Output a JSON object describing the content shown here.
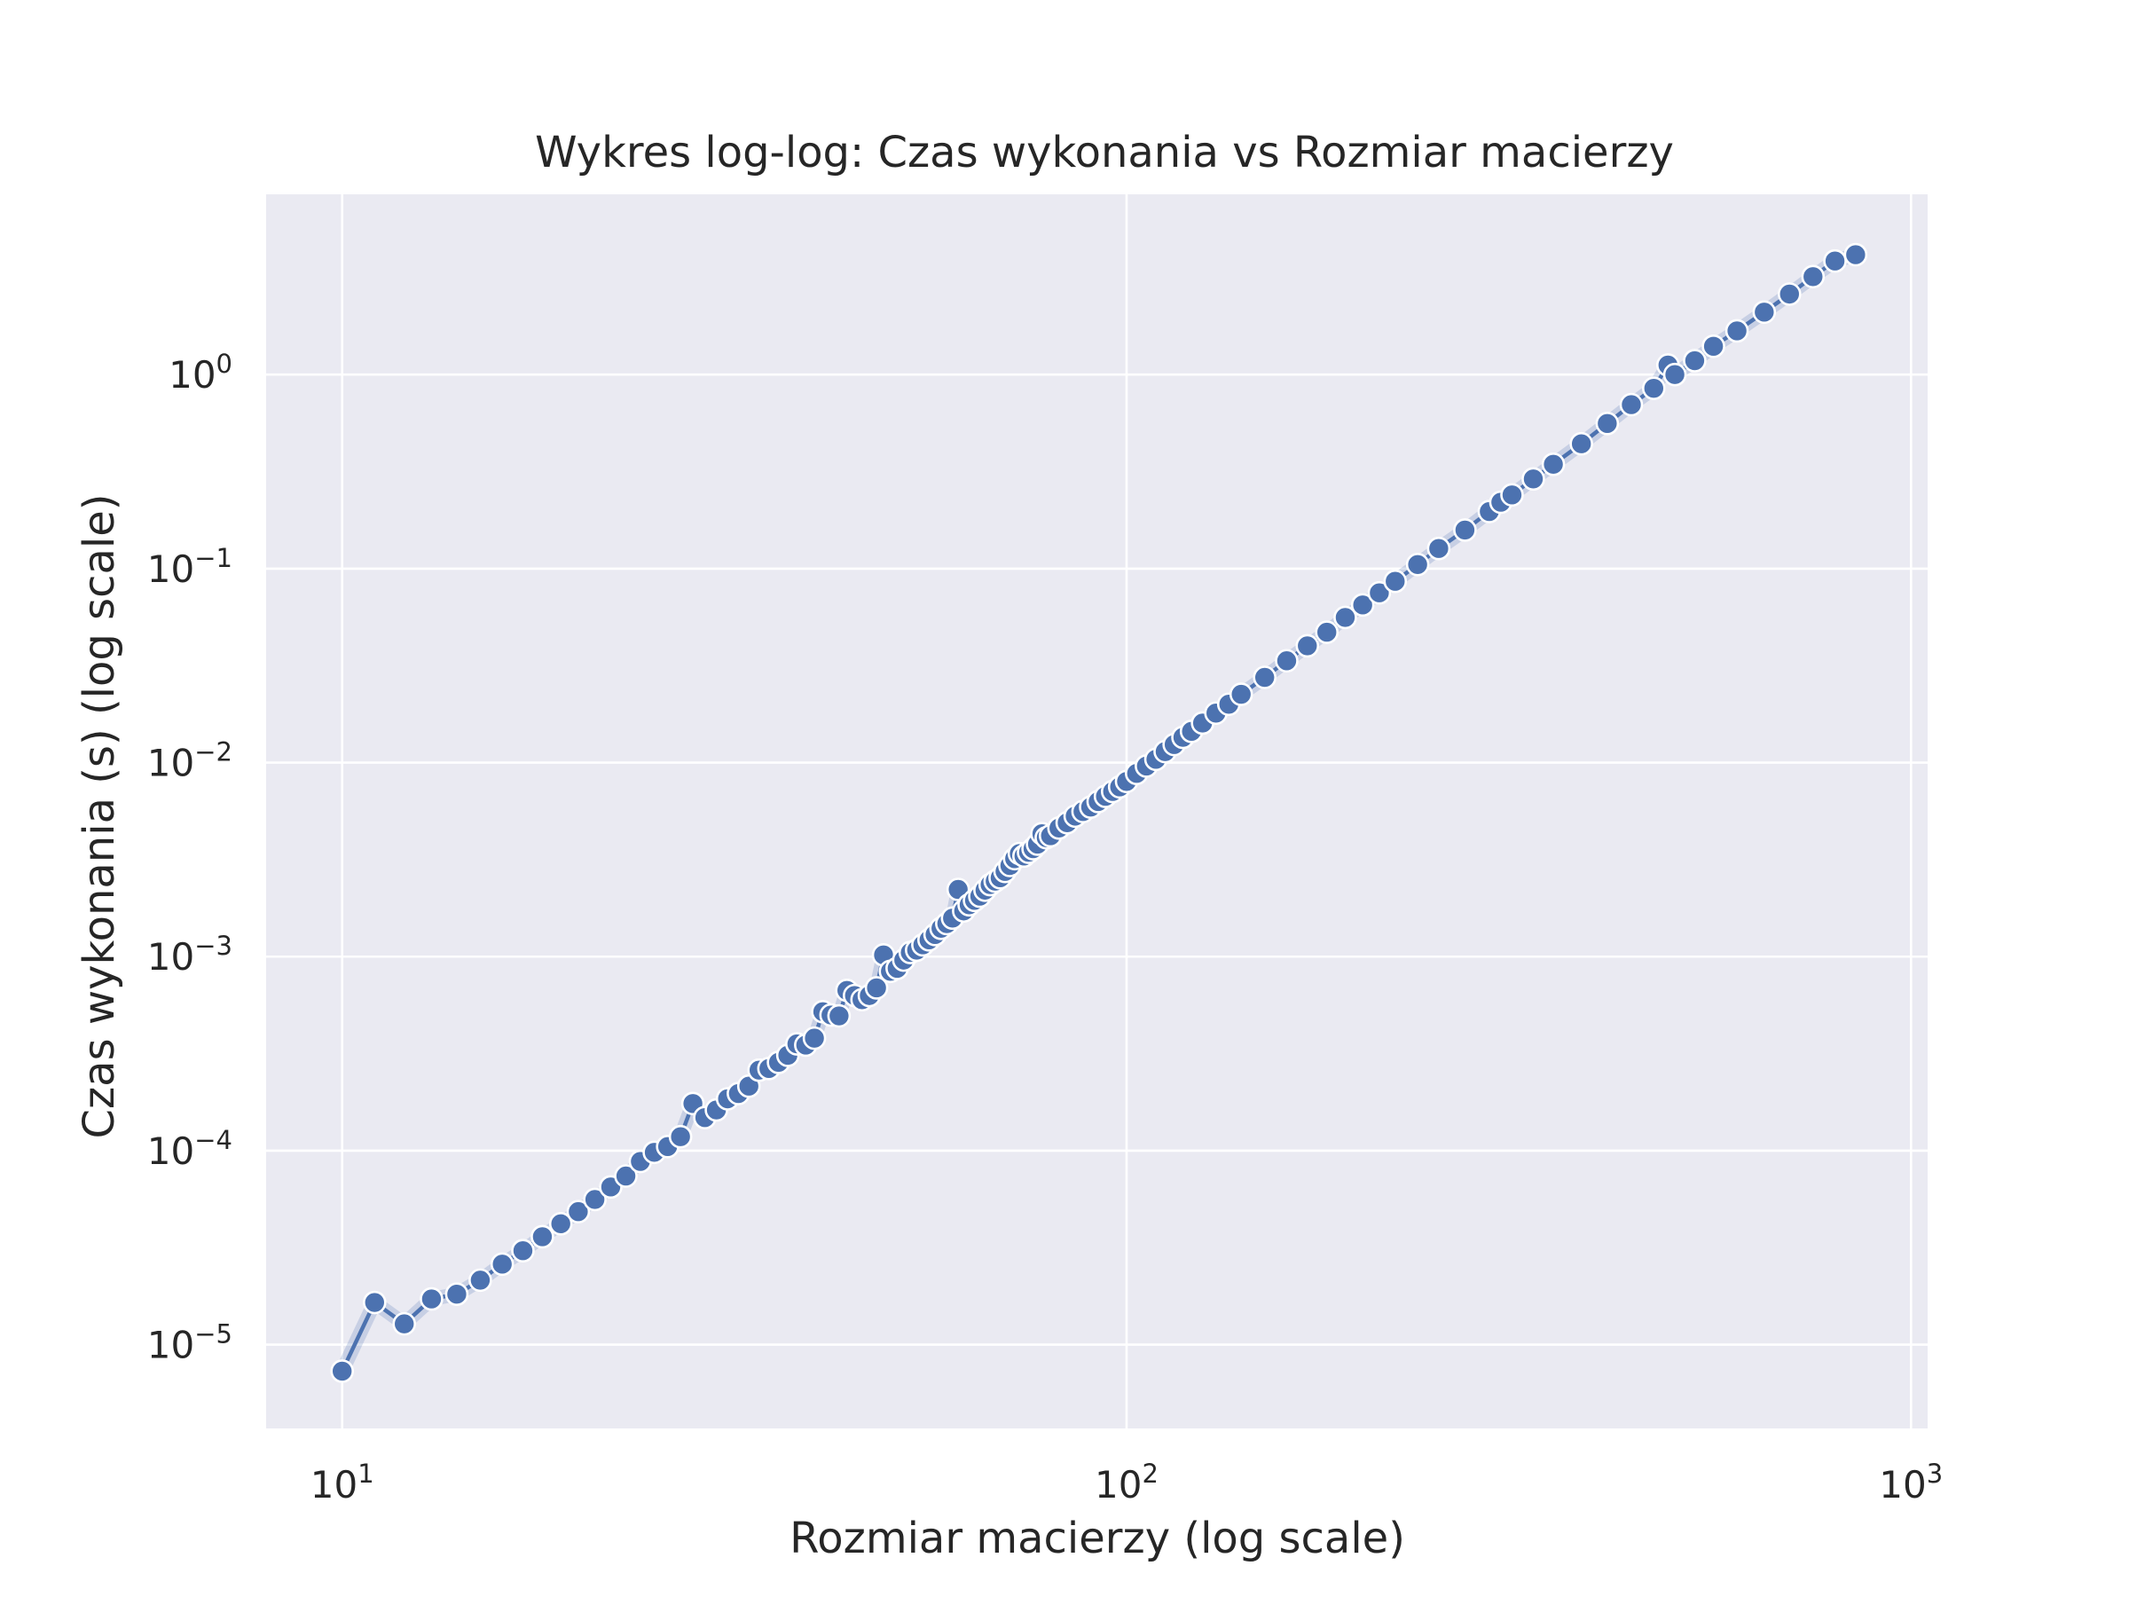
{
  "chart_data": {
    "type": "line",
    "title": "Wykres log-log: Czas wykonania vs Rozmiar macierzy",
    "xlabel": "Rozmiar macierzy (log scale)",
    "ylabel": "Czas wykonania (s) (log scale)",
    "xscale": "log",
    "yscale": "log",
    "xlim": [
      8,
      1050
    ],
    "ylim": [
      3.7e-06,
      8.5
    ],
    "grid": true,
    "legend": "none",
    "colors": {
      "background": "#eaeaf2",
      "grid": "#ffffff",
      "series": "#4c72b0",
      "marker_edge": "#ffffff"
    },
    "x_ticks": [
      {
        "value": 10,
        "base": "10",
        "exp": "1"
      },
      {
        "value": 100,
        "base": "10",
        "exp": "2"
      },
      {
        "value": 1000,
        "base": "10",
        "exp": "3"
      }
    ],
    "y_ticks": [
      {
        "value": 1e-05,
        "base": "10",
        "exp": "−5"
      },
      {
        "value": 0.0001,
        "base": "10",
        "exp": "−4"
      },
      {
        "value": 0.001,
        "base": "10",
        "exp": "−3"
      },
      {
        "value": 0.01,
        "base": "10",
        "exp": "−2"
      },
      {
        "value": 0.1,
        "base": "10",
        "exp": "−1"
      },
      {
        "value": 1,
        "base": "10",
        "exp": "0"
      }
    ],
    "series": [
      {
        "x": [
          10,
          11,
          12,
          13,
          14,
          15,
          16,
          17,
          18,
          19,
          20,
          21,
          22,
          23,
          24,
          25,
          26,
          27,
          28,
          29,
          30,
          31,
          32,
          33,
          34,
          35,
          36,
          37,
          38,
          39,
          40,
          41,
          42,
          43,
          44,
          45,
          46,
          47,
          48,
          49,
          50,
          51,
          52,
          53,
          54,
          55,
          56,
          57,
          58,
          59,
          60,
          61,
          62,
          63,
          64,
          65,
          66,
          67,
          68,
          69,
          70,
          71,
          72,
          73,
          74,
          75,
          76,
          77,
          78,
          79,
          80,
          82,
          84,
          86,
          88,
          90,
          92,
          94,
          96,
          98,
          100,
          103,
          106,
          109,
          112,
          115,
          118,
          121,
          125,
          130,
          135,
          140,
          150,
          160,
          170,
          180,
          190,
          200,
          210,
          220,
          235,
          250,
          270,
          290,
          300,
          310,
          330,
          350,
          380,
          410,
          440,
          470,
          490,
          500,
          530,
          560,
          600,
          650,
          700,
          750,
          800,
          850
        ],
        "y": [
          7.3e-06,
          1.65e-05,
          1.28e-05,
          1.72e-05,
          1.82e-05,
          2.15e-05,
          2.6e-05,
          3.05e-05,
          3.6e-05,
          4.2e-05,
          4.85e-05,
          5.6e-05,
          6.5e-05,
          7.4e-05,
          8.8e-05,
          9.8e-05,
          0.000105,
          0.000118,
          0.000175,
          0.000148,
          0.000162,
          0.000185,
          0.000197,
          0.000215,
          0.00026,
          0.000265,
          0.000285,
          0.00031,
          0.000355,
          0.00035,
          0.00038,
          0.00052,
          0.0005,
          0.000495,
          0.00067,
          0.00063,
          0.0006,
          0.00063,
          0.00069,
          0.00102,
          0.00084,
          0.00087,
          0.00096,
          0.00105,
          0.00108,
          0.00115,
          0.00122,
          0.0013,
          0.0014,
          0.00148,
          0.00158,
          0.00222,
          0.00172,
          0.00185,
          0.00195,
          0.00205,
          0.0022,
          0.00235,
          0.00245,
          0.00255,
          0.00275,
          0.00295,
          0.0032,
          0.0034,
          0.0033,
          0.00345,
          0.0036,
          0.0038,
          0.0043,
          0.0041,
          0.0042,
          0.0046,
          0.0049,
          0.0053,
          0.0056,
          0.0059,
          0.0063,
          0.0067,
          0.0071,
          0.0075,
          0.008,
          0.0088,
          0.0096,
          0.0104,
          0.0114,
          0.0124,
          0.0135,
          0.0145,
          0.016,
          0.018,
          0.02,
          0.0225,
          0.0275,
          0.0335,
          0.04,
          0.047,
          0.056,
          0.065,
          0.075,
          0.086,
          0.105,
          0.127,
          0.158,
          0.197,
          0.22,
          0.24,
          0.29,
          0.345,
          0.44,
          0.56,
          0.7,
          0.85,
          1.12,
          1.0,
          1.18,
          1.4,
          1.68,
          2.1,
          2.6,
          3.2,
          3.85,
          4.15
        ]
      }
    ]
  }
}
